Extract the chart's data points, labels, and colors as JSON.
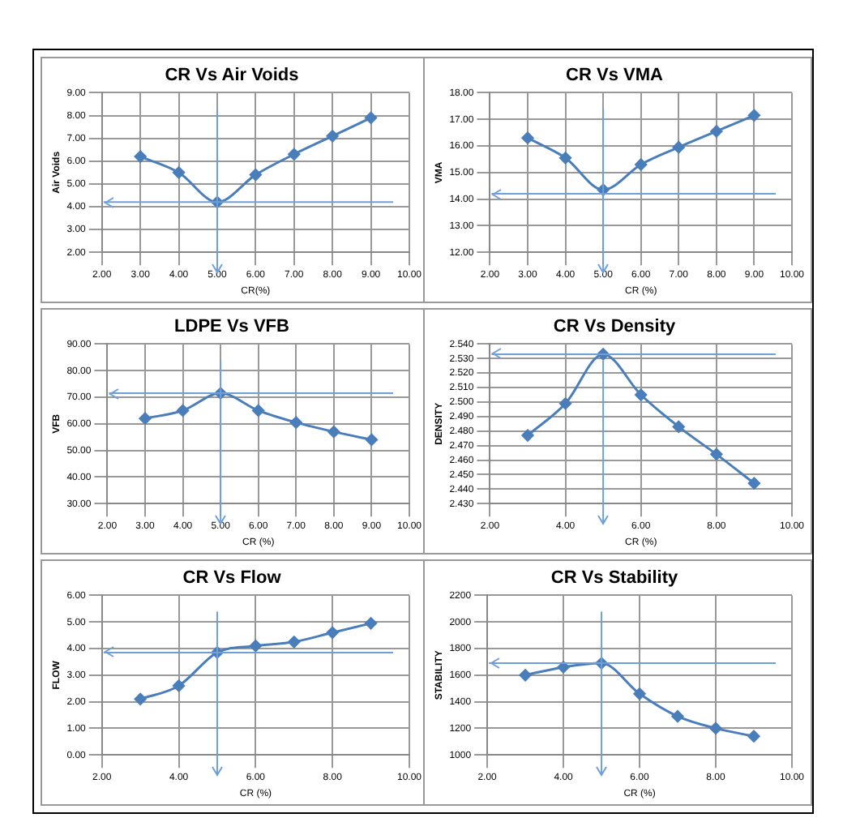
{
  "chart_data": [
    {
      "type": "line",
      "title": "CR Vs Air Voids",
      "xlabel": "CR(%)",
      "ylabel": "Air Voids",
      "x": [
        3,
        4,
        5,
        6,
        7,
        8,
        9
      ],
      "series": [
        {
          "color": "#4a7ebb",
          "values": [
            6.2,
            5.5,
            4.2,
            5.4,
            6.3,
            7.1,
            7.9
          ]
        }
      ],
      "xlim": [
        2,
        10
      ],
      "ylim": [
        2,
        9
      ],
      "xticks": [
        {
          "value": 2,
          "label": "2.00"
        },
        {
          "value": 3,
          "label": "3.00"
        },
        {
          "value": 4,
          "label": "4.00"
        },
        {
          "value": 5,
          "label": "5.00"
        },
        {
          "value": 6,
          "label": "6.00"
        },
        {
          "value": 7,
          "label": "7.00"
        },
        {
          "value": 8,
          "label": "8.00"
        },
        {
          "value": 9,
          "label": "9.00"
        },
        {
          "value": 10,
          "label": "10.00"
        }
      ],
      "yticks": [
        {
          "value": 2,
          "label": "2.00"
        },
        {
          "value": 3,
          "label": "3.00"
        },
        {
          "value": 4,
          "label": "4.00"
        },
        {
          "value": 5,
          "label": "5.00"
        },
        {
          "value": 6,
          "label": "6.00"
        },
        {
          "value": 7,
          "label": "7.00"
        },
        {
          "value": 8,
          "label": "8.00"
        },
        {
          "value": 9,
          "label": "9.00"
        }
      ],
      "ref_lines": [
        {
          "axis": "x",
          "value": 5,
          "color": "#6f9fd8"
        },
        {
          "axis": "y",
          "value": 4.2,
          "color": "#6f9fd8"
        }
      ],
      "grid": true,
      "marker": "diamond",
      "line_style": "solid",
      "legend": false
    },
    {
      "type": "line",
      "title": "CR Vs VMA",
      "xlabel": "CR (%)",
      "ylabel": "VMA",
      "x": [
        3,
        4,
        5,
        6,
        7,
        8,
        9
      ],
      "series": [
        {
          "color": "#4a7ebb",
          "values": [
            16.3,
            15.55,
            14.35,
            15.3,
            15.95,
            16.55,
            17.15
          ]
        }
      ],
      "xlim": [
        2,
        10
      ],
      "ylim": [
        12,
        18
      ],
      "xticks": [
        {
          "value": 2,
          "label": "2.00"
        },
        {
          "value": 3,
          "label": "3.00"
        },
        {
          "value": 4,
          "label": "4.00"
        },
        {
          "value": 5,
          "label": "5.00"
        },
        {
          "value": 6,
          "label": "6.00"
        },
        {
          "value": 7,
          "label": "7.00"
        },
        {
          "value": 8,
          "label": "8.00"
        },
        {
          "value": 9,
          "label": "9.00"
        },
        {
          "value": 10,
          "label": "10.00"
        }
      ],
      "yticks": [
        {
          "value": 12,
          "label": "12.00"
        },
        {
          "value": 13,
          "label": "13.00"
        },
        {
          "value": 14,
          "label": "14.00"
        },
        {
          "value": 15,
          "label": "15.00"
        },
        {
          "value": 16,
          "label": "16.00"
        },
        {
          "value": 17,
          "label": "17.00"
        },
        {
          "value": 18,
          "label": "18.00"
        }
      ],
      "ref_lines": [
        {
          "axis": "x",
          "value": 5,
          "color": "#6f9fd8"
        },
        {
          "axis": "y",
          "value": 14.2,
          "color": "#6f9fd8"
        }
      ],
      "grid": true,
      "marker": "diamond",
      "line_style": "solid",
      "legend": false
    },
    {
      "type": "line",
      "title": "LDPE Vs VFB",
      "xlabel": "CR (%)",
      "ylabel": "VFB",
      "x": [
        3,
        4,
        5,
        6,
        7,
        8,
        9
      ],
      "series": [
        {
          "color": "#4a7ebb",
          "values": [
            62,
            65,
            71.5,
            65,
            60.5,
            57,
            54
          ]
        }
      ],
      "xlim": [
        2,
        10
      ],
      "ylim": [
        30,
        90
      ],
      "xticks": [
        {
          "value": 2,
          "label": "2.00"
        },
        {
          "value": 3,
          "label": "3.00"
        },
        {
          "value": 4,
          "label": "4.00"
        },
        {
          "value": 5,
          "label": "5.00"
        },
        {
          "value": 6,
          "label": "6.00"
        },
        {
          "value": 7,
          "label": "7.00"
        },
        {
          "value": 8,
          "label": "8.00"
        },
        {
          "value": 9,
          "label": "9.00"
        },
        {
          "value": 10,
          "label": "10.00"
        }
      ],
      "yticks": [
        {
          "value": 30,
          "label": "30.00"
        },
        {
          "value": 40,
          "label": "40.00"
        },
        {
          "value": 50,
          "label": "50.00"
        },
        {
          "value": 60,
          "label": "60.00"
        },
        {
          "value": 70,
          "label": "70.00"
        },
        {
          "value": 80,
          "label": "80.00"
        },
        {
          "value": 90,
          "label": "90.00"
        }
      ],
      "ref_lines": [
        {
          "axis": "x",
          "value": 5,
          "color": "#6f9fd8"
        },
        {
          "axis": "y",
          "value": 71.5,
          "color": "#6f9fd8"
        }
      ],
      "grid": true,
      "marker": "diamond",
      "line_style": "solid",
      "legend": false
    },
    {
      "type": "line",
      "title": "CR Vs Density",
      "xlabel": "CR (%)",
      "ylabel": "DENSITY",
      "x": [
        3,
        4,
        5,
        6,
        7,
        8,
        9
      ],
      "series": [
        {
          "color": "#4a7ebb",
          "values": [
            2.477,
            2.499,
            2.533,
            2.505,
            2.483,
            2.464,
            2.444
          ]
        }
      ],
      "xlim": [
        2,
        10
      ],
      "ylim": [
        2.43,
        2.54
      ],
      "xticks": [
        {
          "value": 2,
          "label": "2.00"
        },
        {
          "value": 4,
          "label": "4.00"
        },
        {
          "value": 6,
          "label": "6.00"
        },
        {
          "value": 8,
          "label": "8.00"
        },
        {
          "value": 10,
          "label": "10.00"
        }
      ],
      "yticks": [
        {
          "value": 2.43,
          "label": "2.430"
        },
        {
          "value": 2.44,
          "label": "2.440"
        },
        {
          "value": 2.45,
          "label": "2.450"
        },
        {
          "value": 2.46,
          "label": "2.460"
        },
        {
          "value": 2.47,
          "label": "2.470"
        },
        {
          "value": 2.48,
          "label": "2.480"
        },
        {
          "value": 2.49,
          "label": "2.490"
        },
        {
          "value": 2.5,
          "label": "2.500"
        },
        {
          "value": 2.51,
          "label": "2.510"
        },
        {
          "value": 2.52,
          "label": "2.520"
        },
        {
          "value": 2.53,
          "label": "2.530"
        },
        {
          "value": 2.54,
          "label": "2.540"
        }
      ],
      "ref_lines": [
        {
          "axis": "x",
          "value": 5,
          "color": "#6f9fd8"
        },
        {
          "axis": "y",
          "value": 2.533,
          "color": "#6f9fd8"
        }
      ],
      "grid": true,
      "marker": "diamond",
      "line_style": "solid",
      "legend": false
    },
    {
      "type": "line",
      "title": "CR Vs Flow",
      "xlabel": "CR (%)",
      "ylabel": "FLOW",
      "x": [
        3,
        4,
        5,
        6,
        7,
        8,
        9
      ],
      "series": [
        {
          "color": "#4a7ebb",
          "values": [
            2.1,
            2.6,
            3.85,
            4.1,
            4.25,
            4.6,
            4.95
          ]
        }
      ],
      "xlim": [
        2,
        10
      ],
      "ylim": [
        0,
        6
      ],
      "xticks": [
        {
          "value": 2,
          "label": "2.00"
        },
        {
          "value": 4,
          "label": "4.00"
        },
        {
          "value": 6,
          "label": "6.00"
        },
        {
          "value": 8,
          "label": "8.00"
        },
        {
          "value": 10,
          "label": "10.00"
        }
      ],
      "yticks": [
        {
          "value": 0,
          "label": "0.00"
        },
        {
          "value": 1,
          "label": "1.00"
        },
        {
          "value": 2,
          "label": "2.00"
        },
        {
          "value": 3,
          "label": "3.00"
        },
        {
          "value": 4,
          "label": "4.00"
        },
        {
          "value": 5,
          "label": "5.00"
        },
        {
          "value": 6,
          "label": "6.00"
        }
      ],
      "ref_lines": [
        {
          "axis": "x",
          "value": 5,
          "color": "#6f9fd8"
        },
        {
          "axis": "y",
          "value": 3.85,
          "color": "#6f9fd8"
        }
      ],
      "grid": true,
      "marker": "diamond",
      "line_style": "solid",
      "legend": false
    },
    {
      "type": "line",
      "title": "CR Vs Stability",
      "xlabel": "CR (%)",
      "ylabel": "STABILITY",
      "x": [
        3,
        4,
        5,
        6,
        7,
        8,
        9
      ],
      "series": [
        {
          "color": "#4a7ebb",
          "values": [
            1600,
            1660,
            1690,
            1460,
            1290,
            1200,
            1140
          ]
        }
      ],
      "xlim": [
        2,
        10
      ],
      "ylim": [
        1000,
        2200
      ],
      "xticks": [
        {
          "value": 2,
          "label": "2.00"
        },
        {
          "value": 4,
          "label": "4.00"
        },
        {
          "value": 6,
          "label": "6.00"
        },
        {
          "value": 8,
          "label": "8.00"
        },
        {
          "value": 10,
          "label": "10.00"
        }
      ],
      "yticks": [
        1000,
        1200,
        1400,
        1600,
        1800,
        2000,
        2200
      ],
      "ref_lines": [
        {
          "axis": "x",
          "value": 5,
          "color": "#6f9fd8"
        },
        {
          "axis": "y",
          "value": 1690,
          "color": "#6f9fd8"
        }
      ],
      "grid": true,
      "marker": "diamond",
      "line_style": "solid",
      "legend": false
    }
  ]
}
